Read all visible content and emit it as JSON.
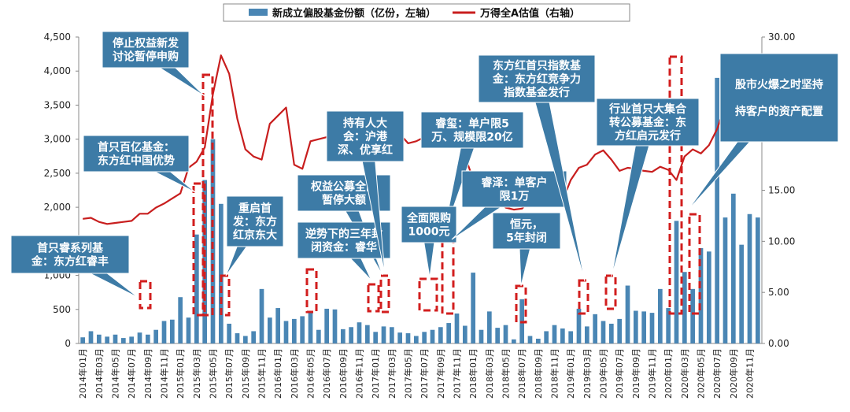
{
  "chart_data": {
    "type": "bar+line",
    "legend": {
      "bar_label": "新成立偏股基金份额（亿份，左轴）",
      "line_label": "万得全A估值（右轴）",
      "placement": "top"
    },
    "colors": {
      "bar": "#4a86b4",
      "line": "#c81e1e",
      "marker": "#d21e1e",
      "callout": "#3d7ba6"
    },
    "left_axis": {
      "min": 0,
      "max": 4500,
      "step": 500,
      "labels": [
        "0",
        "500",
        "1,000",
        "1,500",
        "2,000",
        "2,500",
        "3,000",
        "3,500",
        "4,000",
        "4,500"
      ]
    },
    "right_axis": {
      "min": 0,
      "max": 30,
      "step": 5,
      "labels": [
        "0.00",
        "5.00",
        "10.00",
        "15.00",
        "20.00",
        "25.00",
        "30.00"
      ]
    },
    "x_labels": [
      "2014年01月",
      "2014年03月",
      "2014年05月",
      "2014年07月",
      "2014年09月",
      "2014年11月",
      "2015年01月",
      "2015年03月",
      "2015年05月",
      "2015年07月",
      "2015年09月",
      "2015年11月",
      "2016年01月",
      "2016年03月",
      "2016年05月",
      "2016年07月",
      "2016年09月",
      "2016年11月",
      "2017年01月",
      "2017年03月",
      "2017年05月",
      "2017年07月",
      "2017年09月",
      "2017年11月",
      "2018年01月",
      "2018年03月",
      "2018年05月",
      "2018年07月",
      "2018年09月",
      "2018年11月",
      "2019年01月",
      "2019年03月",
      "2019年05月",
      "2019年07月",
      "2019年09月",
      "2019年11月",
      "2020年01月",
      "2020年03月",
      "2020年05月",
      "2020年07月",
      "2020年09月",
      "2020年11月"
    ],
    "bar_values": [
      90,
      180,
      130,
      100,
      130,
      80,
      100,
      160,
      130,
      200,
      330,
      350,
      680,
      380,
      1600,
      2400,
      3000,
      2050,
      290,
      150,
      110,
      180,
      800,
      380,
      520,
      330,
      360,
      400,
      480,
      200,
      510,
      500,
      210,
      240,
      310,
      270,
      170,
      250,
      240,
      160,
      150,
      110,
      170,
      200,
      240,
      300,
      440,
      260,
      1040,
      200,
      470,
      230,
      270,
      60,
      650,
      110,
      70,
      180,
      270,
      220,
      180,
      510,
      250,
      430,
      330,
      290,
      360,
      850,
      480,
      470,
      450,
      800,
      520,
      1800,
      1050,
      800,
      1400,
      1350,
      3900,
      1850,
      2200,
      1450,
      1900,
      1850
    ],
    "line_values": [
      12.2,
      12.3,
      11.9,
      11.7,
      11.8,
      11.9,
      12.0,
      12.7,
      12.7,
      13.3,
      13.7,
      14.2,
      14.7,
      17.2,
      17.8,
      19.2,
      24.4,
      28.2,
      26.4,
      22.0,
      19.0,
      18.3,
      18.0,
      21.5,
      22.3,
      23.1,
      17.5,
      17.1,
      19.8,
      20.0,
      20.2,
      20.7,
      19.4,
      19.7,
      20.7,
      20.3,
      20.1,
      19.6,
      20.8,
      20.5,
      19.6,
      19.8,
      20.2,
      19.9,
      19.7,
      20.3,
      20.3,
      18.3,
      16.1,
      15.3,
      13.9,
      14.2,
      13.3,
      13.1,
      13.2,
      14.0,
      13.8,
      13.6,
      13.9,
      14.0,
      16.0,
      17.2,
      17.5,
      18.5,
      18.9,
      18.0,
      16.9,
      17.2,
      17.1,
      16.9,
      16.8,
      17.3,
      17.0,
      16.0,
      18.3,
      19.0,
      18.6,
      19.4,
      21.0,
      23.3,
      23.4
    ],
    "callouts": [
      {
        "text": [
          "首只睿系列基",
          "金：东方红睿丰"
        ]
      },
      {
        "text": [
          "首只百亿基金：",
          "东方红中国优势"
        ]
      },
      {
        "text": [
          "停止权益新发",
          "讨论暂停申购"
        ]
      },
      {
        "text": [
          "重启首",
          "发：东方",
          "红京东大"
        ]
      },
      {
        "text": [
          "权益公募全面",
          "暂停大额"
        ]
      },
      {
        "text": [
          "逆势下的三年封",
          "闭资金：睿华"
        ]
      },
      {
        "text": [
          "持有人大",
          "会：沪港",
          "深、优享红"
        ]
      },
      {
        "text": [
          "睿玺：单户限5",
          "万、规模限20亿"
        ]
      },
      {
        "text": [
          "全面限购",
          "1000元"
        ]
      },
      {
        "text": [
          "睿泽：单客户",
          "限1万"
        ]
      },
      {
        "text": [
          "恒元，",
          "5年封闭"
        ]
      },
      {
        "text": [
          "东方红首只指数基",
          "金：东方红竞争力",
          "指数基金发行"
        ]
      },
      {
        "text": [
          "行业首只大集合",
          "转公募基金：东",
          "方红启元发行"
        ]
      },
      {
        "text": [
          "股市火爆之时坚持",
          "",
          "持客户的资产配置"
        ]
      }
    ]
  }
}
